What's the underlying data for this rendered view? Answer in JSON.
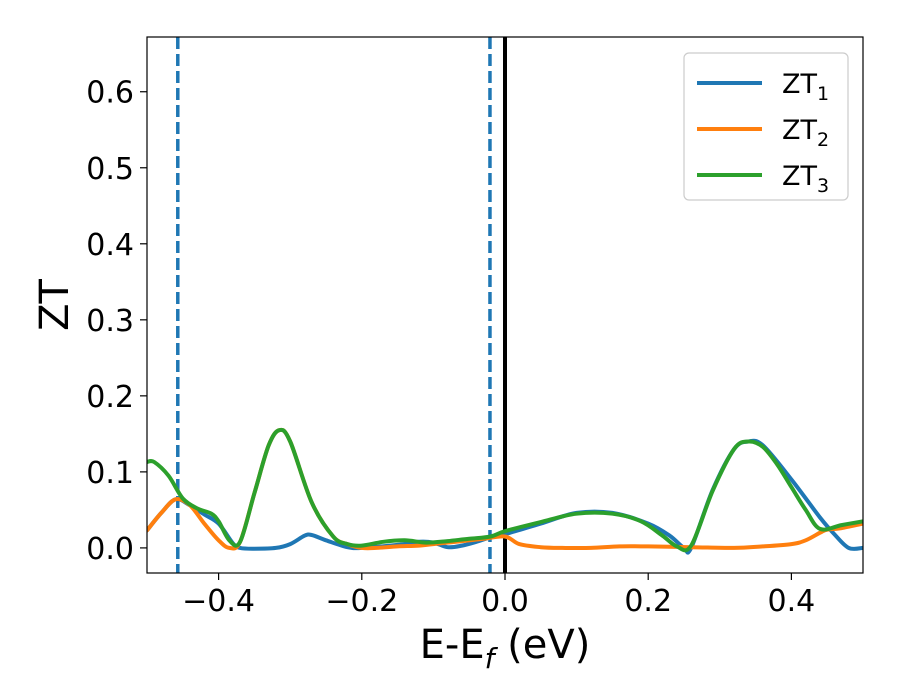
{
  "chart_data": {
    "type": "line",
    "xlabel": "E-E",
    "xlabel_sub": "f",
    "xlabel_unit": " (eV)",
    "ylabel": "ZT",
    "xlim": [
      -0.5,
      0.5
    ],
    "ylim": [
      -0.033,
      0.672
    ],
    "xticks": [
      -0.4,
      -0.2,
      0.0,
      0.2,
      0.4
    ],
    "xtick_labels": [
      "−0.4",
      "−0.2",
      "0.0",
      "0.2",
      "0.4"
    ],
    "yticks": [
      0.0,
      0.1,
      0.2,
      0.3,
      0.4,
      0.5,
      0.6
    ],
    "ytick_labels": [
      "0.0",
      "0.1",
      "0.2",
      "0.3",
      "0.4",
      "0.5",
      "0.6"
    ],
    "grid": false,
    "legend_position": "top-right",
    "vlines": [
      {
        "x": -0.457,
        "style": "dashed",
        "color": "#1f77b4"
      },
      {
        "x": -0.021,
        "style": "dashed",
        "color": "#1f77b4"
      },
      {
        "x": 0.0,
        "style": "solid",
        "color": "#000000"
      }
    ],
    "series": [
      {
        "name": "ZT",
        "name_sub": "1",
        "color": "#1f77b4",
        "points": [
          [
            -0.5,
            0.023
          ],
          [
            -0.48,
            0.046
          ],
          [
            -0.46,
            0.064
          ],
          [
            -0.44,
            0.056
          ],
          [
            -0.42,
            0.044
          ],
          [
            -0.4,
            0.032
          ],
          [
            -0.38,
            0.006
          ],
          [
            -0.37,
            0.0
          ],
          [
            -0.35,
            -0.001
          ],
          [
            -0.32,
            0.0
          ],
          [
            -0.3,
            0.005
          ],
          [
            -0.28,
            0.016
          ],
          [
            -0.27,
            0.017
          ],
          [
            -0.25,
            0.01
          ],
          [
            -0.22,
            0.001
          ],
          [
            -0.2,
            0.0
          ],
          [
            -0.15,
            0.004
          ],
          [
            -0.12,
            0.008
          ],
          [
            -0.1,
            0.007
          ],
          [
            -0.08,
            0.001
          ],
          [
            -0.06,
            0.003
          ],
          [
            -0.04,
            0.008
          ],
          [
            -0.02,
            0.014
          ],
          [
            0.0,
            0.018
          ],
          [
            0.05,
            0.032
          ],
          [
            0.1,
            0.046
          ],
          [
            0.15,
            0.046
          ],
          [
            0.2,
            0.032
          ],
          [
            0.23,
            0.016
          ],
          [
            0.25,
            0.0
          ],
          [
            0.26,
            0.0
          ],
          [
            0.29,
            0.076
          ],
          [
            0.32,
            0.13
          ],
          [
            0.34,
            0.14
          ],
          [
            0.36,
            0.135
          ],
          [
            0.4,
            0.09
          ],
          [
            0.44,
            0.04
          ],
          [
            0.46,
            0.018
          ],
          [
            0.48,
            0.0
          ],
          [
            0.5,
            0.0
          ]
        ]
      },
      {
        "name": "ZT",
        "name_sub": "2",
        "color": "#ff7f0e",
        "points": [
          [
            -0.5,
            0.023
          ],
          [
            -0.48,
            0.046
          ],
          [
            -0.46,
            0.064
          ],
          [
            -0.44,
            0.056
          ],
          [
            -0.42,
            0.032
          ],
          [
            -0.4,
            0.01
          ],
          [
            -0.385,
            0.0
          ],
          [
            -0.37,
            0.008
          ],
          [
            -0.35,
            0.072
          ],
          [
            -0.33,
            0.135
          ],
          [
            -0.315,
            0.155
          ],
          [
            -0.3,
            0.14
          ],
          [
            -0.27,
            0.06
          ],
          [
            -0.24,
            0.015
          ],
          [
            -0.22,
            0.005
          ],
          [
            -0.2,
            0.0
          ],
          [
            -0.18,
            0.0
          ],
          [
            -0.15,
            0.002
          ],
          [
            -0.12,
            0.003
          ],
          [
            -0.09,
            0.006
          ],
          [
            -0.06,
            0.009
          ],
          [
            -0.03,
            0.012
          ],
          [
            0.0,
            0.015
          ],
          [
            0.02,
            0.005
          ],
          [
            0.05,
            0.001
          ],
          [
            0.08,
            0.0
          ],
          [
            0.12,
            0.0
          ],
          [
            0.16,
            0.002
          ],
          [
            0.2,
            0.002
          ],
          [
            0.26,
            0.001
          ],
          [
            0.32,
            0.0
          ],
          [
            0.36,
            0.002
          ],
          [
            0.4,
            0.005
          ],
          [
            0.42,
            0.01
          ],
          [
            0.44,
            0.02
          ],
          [
            0.45,
            0.024
          ],
          [
            0.47,
            0.026
          ],
          [
            0.5,
            0.032
          ]
        ]
      },
      {
        "name": "ZT",
        "name_sub": "3",
        "color": "#2ca02c",
        "points": [
          [
            -0.5,
            0.113
          ],
          [
            -0.49,
            0.113
          ],
          [
            -0.47,
            0.095
          ],
          [
            -0.45,
            0.065
          ],
          [
            -0.43,
            0.052
          ],
          [
            -0.41,
            0.045
          ],
          [
            -0.4,
            0.035
          ],
          [
            -0.385,
            0.01
          ],
          [
            -0.37,
            0.008
          ],
          [
            -0.35,
            0.072
          ],
          [
            -0.33,
            0.135
          ],
          [
            -0.315,
            0.155
          ],
          [
            -0.3,
            0.14
          ],
          [
            -0.27,
            0.06
          ],
          [
            -0.24,
            0.015
          ],
          [
            -0.22,
            0.005
          ],
          [
            -0.2,
            0.003
          ],
          [
            -0.17,
            0.008
          ],
          [
            -0.14,
            0.01
          ],
          [
            -0.11,
            0.007
          ],
          [
            -0.08,
            0.009
          ],
          [
            -0.05,
            0.012
          ],
          [
            -0.02,
            0.015
          ],
          [
            0.0,
            0.022
          ],
          [
            0.05,
            0.034
          ],
          [
            0.1,
            0.045
          ],
          [
            0.15,
            0.045
          ],
          [
            0.19,
            0.035
          ],
          [
            0.22,
            0.016
          ],
          [
            0.24,
            0.002
          ],
          [
            0.26,
            0.003
          ],
          [
            0.29,
            0.075
          ],
          [
            0.32,
            0.13
          ],
          [
            0.34,
            0.14
          ],
          [
            0.36,
            0.133
          ],
          [
            0.38,
            0.11
          ],
          [
            0.4,
            0.08
          ],
          [
            0.42,
            0.05
          ],
          [
            0.44,
            0.025
          ],
          [
            0.47,
            0.03
          ],
          [
            0.5,
            0.035
          ]
        ]
      }
    ]
  }
}
